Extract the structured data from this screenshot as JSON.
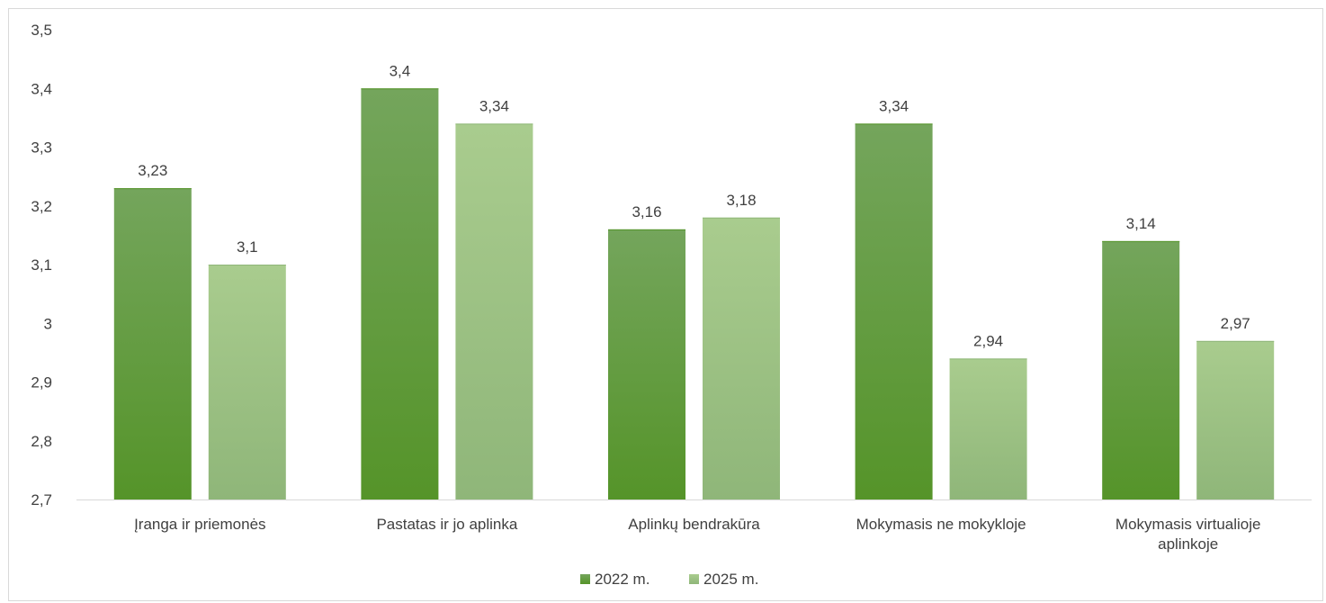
{
  "chart_data": {
    "type": "bar",
    "categories": [
      [
        "Įranga ir priemonės"
      ],
      [
        "Pastatas ir jo aplinka"
      ],
      [
        "Aplinkų bendrakūra"
      ],
      [
        "Mokymasis ne mokykloje"
      ],
      [
        "Mokymasis virtualioje",
        "aplinkoje"
      ]
    ],
    "series": [
      {
        "name": "2022 m.",
        "values": [
          3.23,
          3.4,
          3.16,
          3.34,
          3.14
        ],
        "labels": [
          "3,23",
          "3,4",
          "3,16",
          "3,34",
          "3,14"
        ],
        "color_top": "#74a55c",
        "color_bottom": "#559429"
      },
      {
        "name": "2025 m.",
        "values": [
          3.1,
          3.34,
          3.18,
          2.94,
          2.97
        ],
        "labels": [
          "3,1",
          "3,34",
          "3,18",
          "2,94",
          "2,97"
        ],
        "color_top": "#a9cc8e",
        "color_bottom": "#8fb679"
      }
    ],
    "yticks": [
      {
        "value": 2.7,
        "label": "2,7"
      },
      {
        "value": 2.8,
        "label": "2,8"
      },
      {
        "value": 2.9,
        "label": "2,9"
      },
      {
        "value": 3.0,
        "label": "3"
      },
      {
        "value": 3.1,
        "label": "3,1"
      },
      {
        "value": 3.2,
        "label": "3,2"
      },
      {
        "value": 3.3,
        "label": "3,3"
      },
      {
        "value": 3.4,
        "label": "3,4"
      },
      {
        "value": 3.5,
        "label": "3,5"
      }
    ],
    "ylim": [
      2.7,
      3.5
    ],
    "grid": false,
    "legend_position": "bottom",
    "title": "",
    "xlabel": "",
    "ylabel": ""
  }
}
